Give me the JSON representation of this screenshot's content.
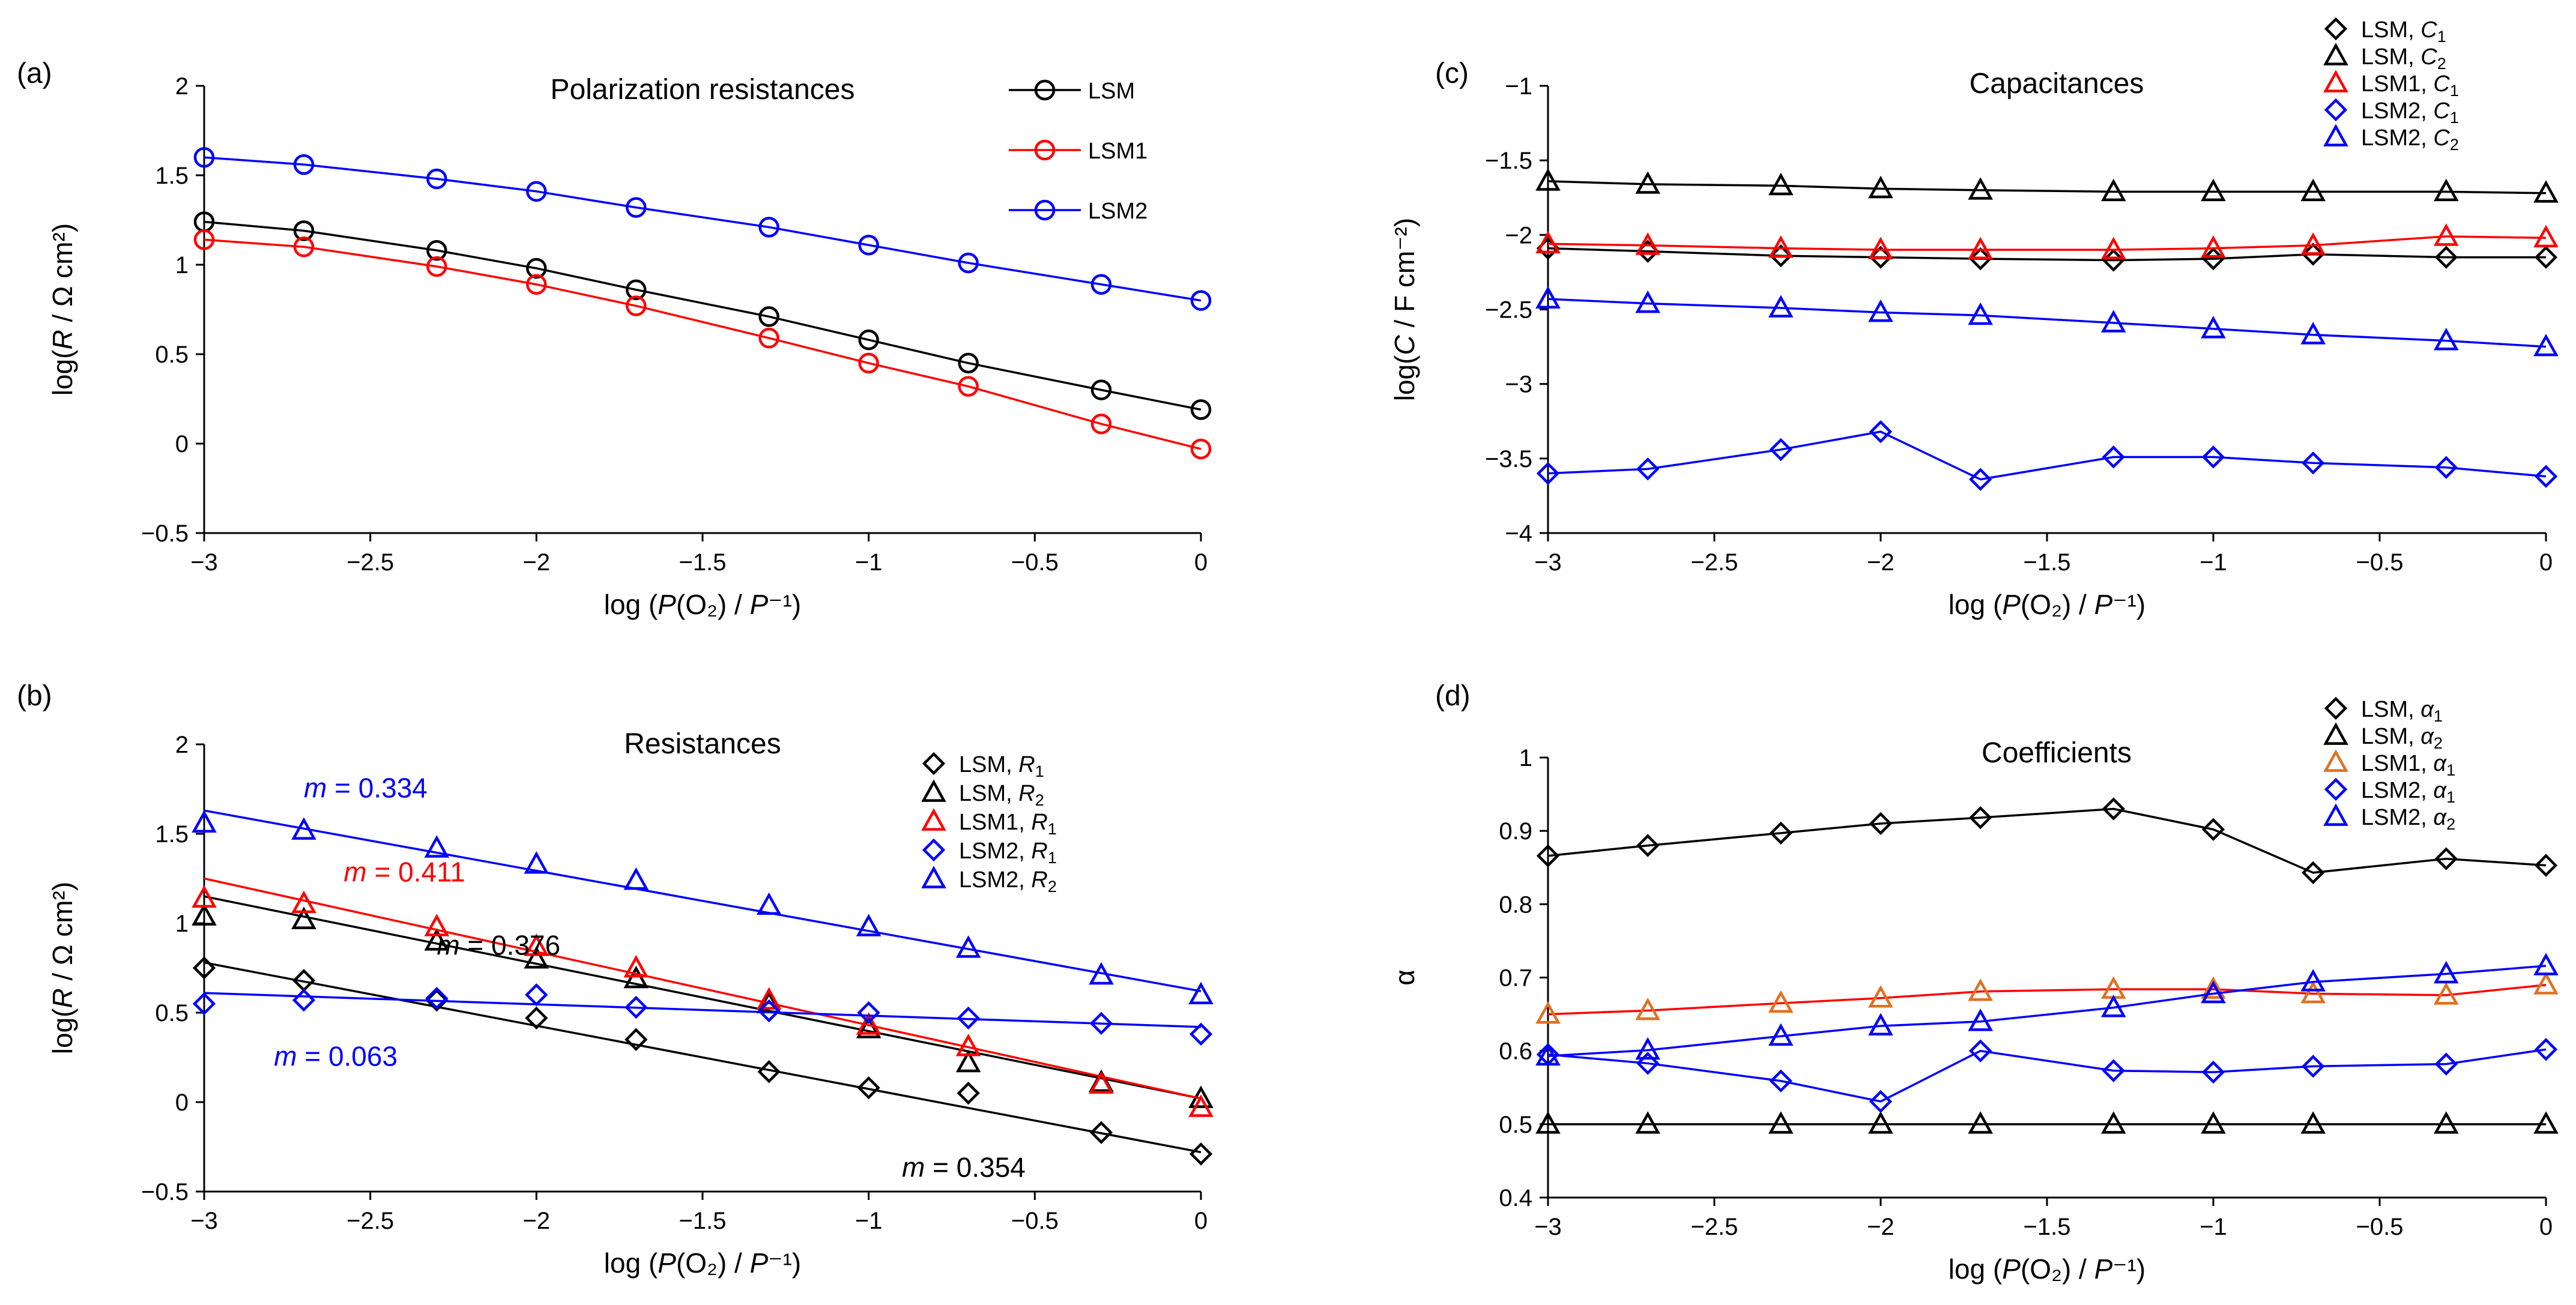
{
  "figure": {
    "xlabel": "log (P(O₂) / P⁻¹)"
  },
  "chart_data": [
    {
      "panel": "(a)",
      "type": "line",
      "title": "Polarization resistances",
      "xlabel": "log (P(O₂) / P⁻¹)",
      "ylabel": "log(R / Ω cm²)",
      "xlim": [
        -3,
        0
      ],
      "ylim": [
        -0.5,
        2
      ],
      "xticks": [
        "−3",
        "−2.5",
        "−2",
        "−1.5",
        "−1",
        "−0.5",
        "0"
      ],
      "yticks": [
        "−0.5",
        "0",
        "0.5",
        "1",
        "1.5",
        "2"
      ],
      "legend_position": "top-right",
      "x": [
        -3,
        -2.7,
        -2.3,
        -2,
        -1.7,
        -1.3,
        -1,
        -0.7,
        -0.3,
        0
      ],
      "series": [
        {
          "name": "LSM",
          "color": "#000000",
          "marker": "circle",
          "line": "connect",
          "values": [
            1.24,
            1.19,
            1.08,
            0.98,
            0.86,
            0.71,
            0.58,
            0.45,
            0.3,
            0.19
          ]
        },
        {
          "name": "LSM1",
          "color": "#ff0000",
          "marker": "circle",
          "line": "connect",
          "values": [
            1.14,
            1.1,
            0.99,
            0.89,
            0.77,
            0.59,
            0.45,
            0.32,
            0.11,
            -0.03
          ]
        },
        {
          "name": "LSM2",
          "color": "#0000ff",
          "marker": "circle",
          "line": "connect",
          "values": [
            1.6,
            1.56,
            1.48,
            1.41,
            1.32,
            1.21,
            1.11,
            1.01,
            0.89,
            0.8
          ]
        }
      ]
    },
    {
      "panel": "(b)",
      "type": "scatter",
      "title": "Resistances",
      "xlabel": "log (P(O₂) / P⁻¹)",
      "ylabel": "log(R / Ω cm²)",
      "xlim": [
        -3,
        0
      ],
      "ylim": [
        -0.5,
        2
      ],
      "xticks": [
        "−3",
        "−2.5",
        "−2",
        "−1.5",
        "−1",
        "−0.5",
        "0"
      ],
      "yticks": [
        "−0.5",
        "0",
        "0.5",
        "1",
        "1.5",
        "2"
      ],
      "legend_position": "top-right",
      "x": [
        -3,
        -2.7,
        -2.3,
        -2,
        -1.7,
        -1.3,
        -1,
        -0.7,
        -0.3,
        0
      ],
      "series": [
        {
          "name": "LSM, R1",
          "base": "LSM, ",
          "sub": "R",
          "subn": "1",
          "color": "#000000",
          "marker": "diamond",
          "values": [
            0.75,
            0.68,
            0.57,
            0.47,
            0.35,
            0.17,
            0.08,
            0.05,
            -0.17,
            -0.29
          ],
          "fit": [
            0.78,
            -0.28
          ]
        },
        {
          "name": "LSM, R2",
          "base": "LSM, ",
          "sub": "R",
          "subn": "2",
          "color": "#000000",
          "marker": "triangle",
          "values": [
            1.04,
            1.02,
            0.9,
            0.8,
            0.69,
            0.55,
            0.41,
            0.22,
            0.11,
            0.02
          ],
          "fit": [
            1.15,
            0.02
          ]
        },
        {
          "name": "LSM1, R1",
          "base": "LSM1, ",
          "sub": "R",
          "subn": "1",
          "color": "#ff0000",
          "marker": "triangle",
          "values": [
            1.14,
            1.11,
            0.98,
            0.87,
            0.75,
            0.57,
            0.43,
            0.31,
            0.1,
            -0.03
          ],
          "fit": [
            1.25,
            0.02
          ]
        },
        {
          "name": "LSM2, R1",
          "base": "LSM2, ",
          "sub": "R",
          "subn": "1",
          "color": "#0000ff",
          "marker": "diamond",
          "values": [
            0.55,
            0.57,
            0.58,
            0.6,
            0.53,
            0.51,
            0.5,
            0.47,
            0.44,
            0.38
          ],
          "fit": [
            0.61,
            0.42
          ]
        },
        {
          "name": "LSM2, R2",
          "base": "LSM2, ",
          "sub": "R",
          "subn": "2",
          "color": "#0000ff",
          "marker": "triangle",
          "values": [
            1.56,
            1.52,
            1.42,
            1.33,
            1.24,
            1.1,
            0.98,
            0.86,
            0.71,
            0.6
          ],
          "fit": [
            1.63,
            0.62
          ]
        }
      ],
      "annotations": [
        {
          "prefix": "m",
          "text": " = 0.334",
          "color": "#0000ff",
          "x": -2.7,
          "y": 1.75
        },
        {
          "prefix": "m",
          "text": " = 0.411",
          "color": "#ff0000",
          "x": -2.58,
          "y": 1.28
        },
        {
          "prefix": "m",
          "text": " = 0.376",
          "color": "#000000",
          "x": -2.3,
          "y": 0.87
        },
        {
          "prefix": "m",
          "text": " = 0.063",
          "color": "#0000ff",
          "x": -2.79,
          "y": 0.25
        },
        {
          "prefix": "m",
          "text": " = 0.354",
          "color": "#000000",
          "x": -0.9,
          "y": -0.37
        }
      ]
    },
    {
      "panel": "(c)",
      "type": "line",
      "title": "Capacitances",
      "xlabel": "log (P(O₂) / P⁻¹)",
      "ylabel": "log(C / F cm⁻²)",
      "xlim": [
        -3,
        0
      ],
      "ylim": [
        -4,
        -1
      ],
      "xticks": [
        "−3",
        "−2.5",
        "−2",
        "−1.5",
        "−1",
        "−0.5",
        "0"
      ],
      "yticks": [
        "−4",
        "−3.5",
        "−3",
        "−2.5",
        "−2",
        "−1.5",
        "−1"
      ],
      "legend_position": "top-right",
      "x": [
        -3,
        -2.7,
        -2.3,
        -2,
        -1.7,
        -1.3,
        -1,
        -0.7,
        -0.3,
        0
      ],
      "series": [
        {
          "name": "LSM, C1",
          "base": "LSM, ",
          "sub": "C",
          "subn": "1",
          "color": "#000000",
          "marker": "diamond",
          "values": [
            -2.09,
            -2.11,
            -2.14,
            -2.15,
            -2.16,
            -2.17,
            -2.16,
            -2.13,
            -2.15,
            -2.15
          ]
        },
        {
          "name": "LSM, C2",
          "base": "LSM, ",
          "sub": "C",
          "subn": "2",
          "color": "#000000",
          "marker": "triangle",
          "values": [
            -1.64,
            -1.66,
            -1.67,
            -1.69,
            -1.7,
            -1.71,
            -1.71,
            -1.71,
            -1.71,
            -1.72
          ]
        },
        {
          "name": "LSM1, C1",
          "base": "LSM1, ",
          "sub": "C",
          "subn": "1",
          "color": "#ff0000",
          "marker": "triangle",
          "values": [
            -2.06,
            -2.07,
            -2.09,
            -2.1,
            -2.1,
            -2.1,
            -2.09,
            -2.07,
            -2.01,
            -2.02
          ]
        },
        {
          "name": "LSM2, C1",
          "base": "LSM2, ",
          "sub": "C",
          "subn": "1",
          "color": "#0000ff",
          "marker": "diamond",
          "values": [
            -3.6,
            -3.57,
            -3.44,
            -3.32,
            -3.64,
            -3.49,
            -3.49,
            -3.53,
            -3.56,
            -3.62
          ]
        },
        {
          "name": "LSM2, C2",
          "base": "LSM2, ",
          "sub": "C",
          "subn": "2",
          "color": "#0000ff",
          "marker": "triangle",
          "values": [
            -2.43,
            -2.46,
            -2.49,
            -2.52,
            -2.54,
            -2.59,
            -2.63,
            -2.67,
            -2.71,
            -2.75
          ]
        }
      ]
    },
    {
      "panel": "(d)",
      "type": "line",
      "title": "Coefficients",
      "xlabel": "log (P(O₂) / P⁻¹)",
      "ylabel": "α",
      "xlim": [
        -3,
        0
      ],
      "ylim": [
        0.4,
        1
      ],
      "xticks": [
        "−3",
        "−2.5",
        "−2",
        "−1.5",
        "−1",
        "−0.5",
        "0"
      ],
      "yticks": [
        "0.4",
        "0.5",
        "0.6",
        "0.7",
        "0.8",
        "0.9",
        "1"
      ],
      "legend_position": "top-right",
      "x": [
        -3,
        -2.7,
        -2.3,
        -2,
        -1.7,
        -1.3,
        -1,
        -0.7,
        -0.3,
        0
      ],
      "series": [
        {
          "name": "LSM, α1",
          "base": "LSM, ",
          "sub": "α",
          "subn": "1",
          "color": "#000000",
          "marker": "diamond",
          "values": [
            0.866,
            0.88,
            0.897,
            0.91,
            0.918,
            0.93,
            0.902,
            0.843,
            0.862,
            0.853
          ]
        },
        {
          "name": "LSM, α2",
          "base": "LSM, ",
          "sub": "α",
          "subn": "2",
          "color": "#000000",
          "marker": "triangle",
          "values": [
            0.5,
            0.5,
            0.5,
            0.5,
            0.5,
            0.5,
            0.5,
            0.5,
            0.5,
            0.5
          ]
        },
        {
          "name": "LSM1, α1",
          "base": "LSM1, ",
          "sub": "α",
          "subn": "1",
          "color": "#ff0000",
          "markerColor": "#e07020",
          "marker": "triangle",
          "values": [
            0.65,
            0.655,
            0.665,
            0.672,
            0.681,
            0.684,
            0.684,
            0.678,
            0.676,
            0.69
          ]
        },
        {
          "name": "LSM2, α1",
          "base": "LSM2, ",
          "sub": "α",
          "subn": "1",
          "color": "#0000ff",
          "marker": "diamond",
          "values": [
            0.595,
            0.583,
            0.559,
            0.531,
            0.6,
            0.573,
            0.571,
            0.579,
            0.582,
            0.602
          ]
        },
        {
          "name": "LSM2, α2",
          "base": "LSM2, ",
          "sub": "α",
          "subn": "2",
          "color": "#0000ff",
          "marker": "triangle",
          "values": [
            0.593,
            0.601,
            0.62,
            0.634,
            0.64,
            0.659,
            0.678,
            0.694,
            0.705,
            0.716
          ]
        }
      ]
    }
  ]
}
